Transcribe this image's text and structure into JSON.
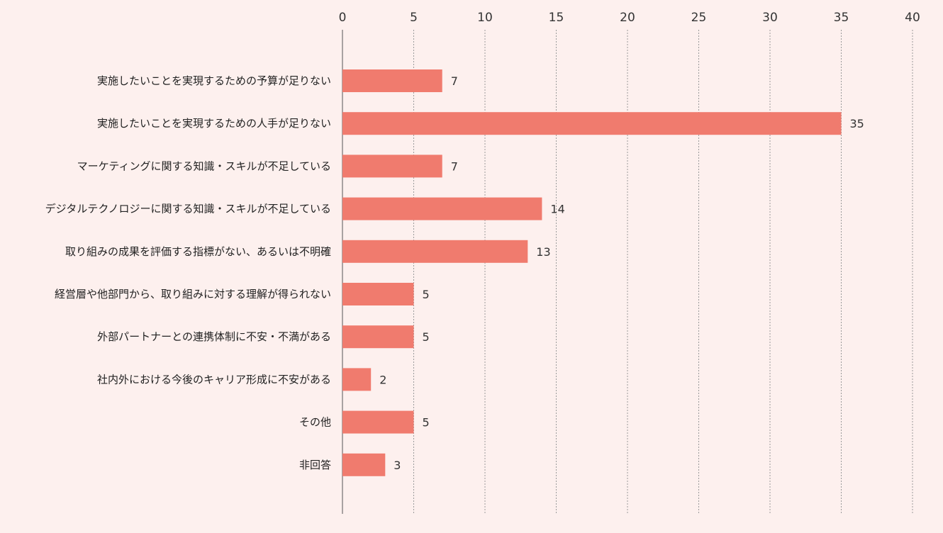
{
  "chart_data": {
    "type": "bar",
    "orientation": "horizontal",
    "title": "",
    "xlabel": "",
    "ylabel": "",
    "xlim": [
      0,
      40
    ],
    "ticks": [
      0,
      5,
      10,
      15,
      20,
      25,
      30,
      35,
      40
    ],
    "grid": true,
    "bar_color": "#f07b6e",
    "background_color": "#fdf0ee",
    "categories": [
      "実施したいことを実現するための予算が足りない",
      "実施したいことを実現するための人手が足りない",
      "マーケティングに関する知識・スキルが不足している",
      "デジタルテクノロジーに関する知識・スキルが不足している",
      "取り組みの成果を評価する指標がない、あるいは不明確",
      "経営層や他部門から、取り組みに対する理解が得られない",
      "外部パートナーとの連携体制に不安・不満がある",
      "社内外における今後のキャリア形成に不安がある",
      "その他",
      "非回答"
    ],
    "values": [
      7,
      35,
      7,
      14,
      13,
      5,
      5,
      2,
      5,
      3
    ]
  }
}
